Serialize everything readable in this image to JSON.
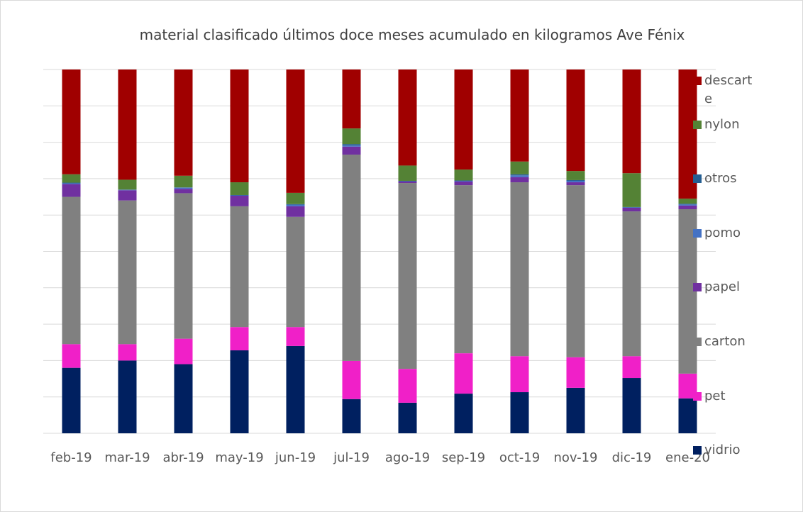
{
  "chart_data": {
    "type": "stacked_bar",
    "title": "material clasificado últimos doce meses acumulado en kilogramos Ave Fénix",
    "categories": [
      "feb-19",
      "mar-19",
      "abr-19",
      "may-19",
      "jun-19",
      "jul-19",
      "ago-19",
      "sep-19",
      "oct-19",
      "nov-19",
      "dic-19",
      "ene-20"
    ],
    "series": [
      {
        "name": "vidrio",
        "color": "#002060",
        "values": [
          18,
          20,
          19,
          22.8,
          24,
          9.4,
          8.4,
          10.9,
          11.3,
          12.5,
          15.2,
          9.6
        ]
      },
      {
        "name": "pet",
        "color": "#f020c8",
        "values": [
          6.5,
          4.5,
          7,
          6.4,
          5.2,
          10.5,
          9.3,
          11.1,
          9.9,
          8.4,
          6,
          6.8
        ]
      },
      {
        "name": "carton",
        "color": "#808080",
        "values": [
          40.5,
          39.5,
          40,
          33.2,
          30.3,
          56.7,
          51.1,
          46.2,
          47.8,
          47.3,
          39.8,
          45.2
        ]
      },
      {
        "name": "papel",
        "color": "#7030a0",
        "values": [
          3.5,
          2.8,
          1.2,
          2.9,
          2.9,
          2.2,
          0.4,
          1,
          1.4,
          0.8,
          1,
          1
        ]
      },
      {
        "name": "pomo",
        "color": "#4472c4",
        "values": [
          0.2,
          0.1,
          0.3,
          0.1,
          0.4,
          0.3,
          0.1,
          0.2,
          0.5,
          0.4,
          0.1,
          0.3
        ]
      },
      {
        "name": "otros",
        "color": "#255e91",
        "values": [
          0.2,
          0.1,
          0.1,
          0.1,
          0.2,
          0.4,
          0.1,
          0.1,
          0.3,
          0.2,
          0.1,
          0.2
        ]
      },
      {
        "name": "nylon",
        "color": "#548235",
        "values": [
          2.3,
          2.7,
          3.2,
          3.5,
          3.1,
          4.3,
          4.2,
          3,
          3.5,
          2.5,
          9.3,
          1.4
        ]
      },
      {
        "name": "descarte",
        "color": "#a00000",
        "values": [
          28.8,
          30.3,
          29.2,
          31,
          33.9,
          16.2,
          26.4,
          27.5,
          25.3,
          27.9,
          28.5,
          35.5
        ]
      }
    ],
    "ylim": [
      0,
      100
    ],
    "yticks": [
      0,
      10,
      20,
      30,
      40,
      50,
      60,
      70,
      80,
      90,
      100
    ],
    "grid": true,
    "legend": "right"
  }
}
